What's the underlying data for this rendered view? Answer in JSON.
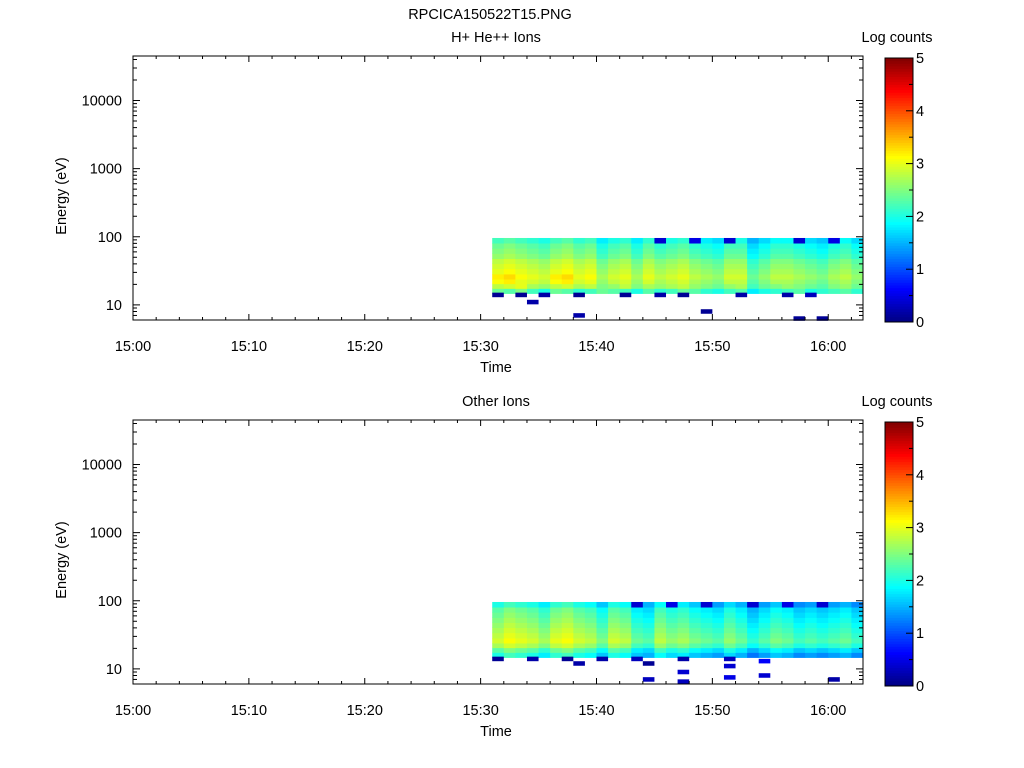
{
  "figure_title": "RPCICA150522T15.PNG",
  "chart_data": [
    {
      "type": "heatmap",
      "title": "H+ He++ Ions",
      "xlabel": "Time",
      "ylabel": "Energy (eV)",
      "y_scale": "log",
      "ylim": [
        6,
        45000
      ],
      "x_ticks": [
        "15:00",
        "15:10",
        "15:20",
        "15:30",
        "15:40",
        "15:50",
        "16:00"
      ],
      "y_ticks": [
        "10",
        "100",
        "1000",
        "10000"
      ],
      "colorbar": {
        "label": "Log counts",
        "range": [
          0,
          5
        ],
        "ticks": [
          "0",
          "1",
          "2",
          "3",
          "4",
          "5"
        ],
        "colormap": "jet"
      },
      "time_range": [
        "15:00",
        "16:03"
      ],
      "data_time_range": [
        "15:31",
        "16:03"
      ],
      "energy_bins_eV": [
        16,
        19,
        22,
        26,
        31,
        37,
        44,
        52,
        62,
        74,
        88
      ],
      "intensity_rows_low_to_high": [
        [
          2.4,
          2.3,
          2.5,
          2.2,
          2.0,
          2.4,
          2.3,
          2.1,
          2.2,
          2.4,
          2.3,
          2.2,
          2.0,
          2.3,
          2.1,
          2.2,
          2.4,
          2.3,
          2.1,
          2.0,
          2.2,
          2.3,
          1.8,
          2.0,
          2.1,
          2.2,
          2.3,
          2.0,
          2.1,
          2.2,
          2.3,
          2.1
        ],
        [
          2.8,
          2.9,
          3.0,
          2.7,
          2.6,
          2.8,
          2.9,
          2.7,
          2.8,
          2.5,
          2.6,
          2.8,
          2.5,
          2.7,
          2.6,
          2.7,
          2.8,
          2.6,
          2.5,
          2.4,
          2.6,
          2.7,
          2.2,
          2.4,
          2.5,
          2.6,
          2.5,
          2.4,
          2.3,
          2.5,
          2.6,
          2.4
        ],
        [
          3.1,
          3.2,
          3.0,
          2.9,
          2.8,
          3.1,
          3.2,
          2.9,
          3.0,
          2.6,
          2.8,
          2.9,
          2.6,
          2.9,
          2.7,
          2.8,
          2.9,
          2.7,
          2.6,
          2.5,
          2.8,
          2.8,
          2.3,
          2.5,
          2.7,
          2.7,
          2.6,
          2.5,
          2.4,
          2.6,
          2.7,
          2.5
        ],
        [
          3.2,
          3.3,
          3.1,
          3.0,
          2.9,
          3.2,
          3.3,
          3.0,
          3.1,
          2.7,
          2.9,
          3.0,
          2.7,
          3.0,
          2.8,
          2.9,
          3.0,
          2.8,
          2.7,
          2.6,
          2.9,
          2.9,
          2.4,
          2.6,
          2.8,
          2.8,
          2.7,
          2.6,
          2.5,
          2.7,
          2.8,
          2.6
        ],
        [
          3.0,
          3.1,
          3.0,
          2.9,
          2.8,
          3.0,
          3.1,
          2.9,
          3.0,
          2.6,
          2.8,
          2.9,
          2.6,
          2.9,
          2.7,
          2.8,
          2.9,
          2.7,
          2.6,
          2.5,
          2.8,
          2.8,
          2.3,
          2.5,
          2.7,
          2.7,
          2.6,
          2.5,
          2.4,
          2.6,
          2.7,
          2.5
        ],
        [
          2.9,
          3.0,
          2.9,
          2.8,
          2.7,
          2.9,
          3.0,
          2.8,
          2.9,
          2.5,
          2.7,
          2.8,
          2.5,
          2.8,
          2.6,
          2.7,
          2.8,
          2.6,
          2.5,
          2.4,
          2.7,
          2.7,
          2.2,
          2.4,
          2.6,
          2.6,
          2.5,
          2.4,
          2.3,
          2.5,
          2.6,
          2.4
        ],
        [
          2.8,
          2.9,
          2.8,
          2.7,
          2.6,
          2.8,
          2.9,
          2.7,
          2.8,
          2.4,
          2.6,
          2.7,
          2.4,
          2.7,
          2.5,
          2.6,
          2.7,
          2.5,
          2.4,
          2.3,
          2.6,
          2.6,
          2.1,
          2.3,
          2.5,
          2.5,
          2.4,
          2.3,
          2.2,
          2.4,
          2.5,
          2.3
        ],
        [
          2.6,
          2.7,
          2.6,
          2.5,
          2.4,
          2.6,
          2.7,
          2.5,
          2.6,
          2.2,
          2.4,
          2.5,
          2.2,
          2.5,
          2.3,
          2.4,
          2.5,
          2.3,
          2.2,
          2.1,
          2.4,
          2.4,
          1.9,
          2.1,
          2.3,
          2.3,
          2.2,
          2.1,
          2.0,
          2.2,
          2.3,
          2.1
        ],
        [
          2.5,
          2.6,
          2.5,
          2.4,
          2.3,
          2.5,
          2.6,
          2.4,
          2.5,
          2.1,
          2.3,
          2.4,
          2.1,
          2.4,
          2.2,
          2.3,
          2.4,
          2.2,
          2.1,
          2.0,
          2.3,
          2.3,
          1.8,
          2.0,
          2.2,
          2.2,
          2.1,
          2.0,
          1.9,
          2.1,
          2.2,
          2.0
        ],
        [
          2.4,
          2.5,
          2.4,
          2.3,
          2.2,
          2.4,
          2.5,
          2.3,
          2.4,
          2.0,
          2.2,
          2.3,
          2.0,
          2.3,
          2.1,
          2.2,
          2.3,
          2.1,
          2.0,
          1.9,
          2.2,
          2.2,
          1.7,
          1.9,
          2.1,
          2.1,
          2.0,
          1.9,
          1.8,
          2.0,
          2.1,
          1.9
        ],
        [
          2.2,
          2.3,
          2.2,
          2.1,
          2.0,
          2.2,
          2.3,
          2.1,
          2.2,
          1.8,
          2.0,
          2.1,
          1.8,
          2.1,
          0.4,
          2.0,
          2.1,
          0.5,
          1.8,
          1.7,
          0.4,
          2.0,
          1.5,
          1.7,
          1.9,
          1.9,
          0.4,
          1.7,
          1.6,
          0.5,
          1.9,
          1.7
        ]
      ],
      "low_energy_points": [
        {
          "t": "15:31",
          "e": 14,
          "v": 0.1
        },
        {
          "t": "15:33",
          "e": 14,
          "v": 0.1
        },
        {
          "t": "15:35",
          "e": 14,
          "v": 0.2
        },
        {
          "t": "15:34",
          "e": 11,
          "v": 0.2
        },
        {
          "t": "15:38",
          "e": 14,
          "v": 0.1
        },
        {
          "t": "15:38",
          "e": 7,
          "v": 0.2
        },
        {
          "t": "15:42",
          "e": 14,
          "v": 0.1
        },
        {
          "t": "15:45",
          "e": 14,
          "v": 0.2
        },
        {
          "t": "15:47",
          "e": 14,
          "v": 0.1
        },
        {
          "t": "15:49",
          "e": 8,
          "v": 0.1
        },
        {
          "t": "15:52",
          "e": 14,
          "v": 0.2
        },
        {
          "t": "15:56",
          "e": 14,
          "v": 0.2
        },
        {
          "t": "15:57",
          "e": 6.3,
          "v": 0.1
        },
        {
          "t": "15:58",
          "e": 14,
          "v": 0.3
        },
        {
          "t": "15:59",
          "e": 6.3,
          "v": 0.1
        }
      ]
    },
    {
      "type": "heatmap",
      "title": "Other Ions",
      "xlabel": "Time",
      "ylabel": "Energy (eV)",
      "y_scale": "log",
      "ylim": [
        6,
        45000
      ],
      "x_ticks": [
        "15:00",
        "15:10",
        "15:20",
        "15:30",
        "15:40",
        "15:50",
        "16:00"
      ],
      "y_ticks": [
        "10",
        "100",
        "1000",
        "10000"
      ],
      "colorbar": {
        "label": "Log counts",
        "range": [
          0,
          5
        ],
        "ticks": [
          "0",
          "1",
          "2",
          "3",
          "4",
          "5"
        ],
        "colormap": "jet"
      },
      "time_range": [
        "15:00",
        "16:03"
      ],
      "data_time_range": [
        "15:31",
        "16:03"
      ],
      "energy_bins_eV": [
        16,
        19,
        22,
        26,
        31,
        37,
        44,
        52,
        62,
        74,
        88
      ],
      "intensity_rows_low_to_high": [
        [
          2.0,
          2.2,
          2.1,
          2.0,
          1.8,
          2.1,
          2.2,
          2.0,
          1.9,
          1.6,
          2.0,
          1.9,
          1.6,
          1.5,
          1.9,
          1.7,
          1.8,
          1.6,
          1.5,
          1.4,
          1.7,
          1.5,
          1.2,
          1.4,
          1.6,
          1.5,
          1.3,
          1.4,
          1.3,
          1.4,
          1.5,
          1.3
        ],
        [
          2.3,
          2.5,
          2.4,
          2.3,
          2.1,
          2.4,
          2.5,
          2.3,
          2.2,
          1.9,
          2.3,
          2.2,
          1.8,
          1.7,
          2.2,
          2.0,
          2.1,
          1.9,
          1.8,
          1.7,
          2.0,
          1.8,
          1.5,
          1.7,
          1.9,
          1.8,
          1.6,
          1.7,
          1.6,
          1.7,
          1.8,
          1.6
        ],
        [
          2.7,
          2.9,
          2.8,
          2.7,
          2.5,
          2.8,
          2.9,
          2.7,
          2.6,
          2.3,
          2.7,
          2.6,
          2.2,
          2.1,
          2.6,
          2.4,
          2.5,
          2.3,
          2.2,
          2.1,
          2.4,
          2.2,
          1.9,
          2.1,
          2.3,
          2.2,
          2.0,
          2.1,
          2.0,
          2.1,
          2.2,
          2.0
        ],
        [
          2.9,
          3.1,
          3.0,
          2.9,
          2.7,
          3.0,
          3.1,
          2.9,
          2.8,
          2.5,
          2.9,
          2.8,
          2.4,
          2.3,
          2.8,
          2.6,
          2.7,
          2.5,
          2.4,
          2.3,
          2.6,
          2.4,
          2.1,
          2.3,
          2.5,
          2.4,
          2.2,
          2.3,
          2.2,
          2.3,
          2.4,
          2.2
        ],
        [
          2.8,
          3.0,
          2.9,
          2.8,
          2.6,
          2.9,
          3.0,
          2.8,
          2.7,
          2.4,
          2.8,
          2.7,
          2.3,
          2.2,
          2.7,
          2.5,
          2.6,
          2.4,
          2.3,
          2.2,
          2.5,
          2.3,
          2.0,
          2.2,
          2.4,
          2.3,
          2.1,
          2.2,
          2.1,
          2.2,
          2.3,
          2.1
        ],
        [
          2.7,
          2.9,
          2.8,
          2.7,
          2.5,
          2.8,
          2.9,
          2.7,
          2.6,
          2.3,
          2.7,
          2.6,
          2.2,
          2.1,
          2.6,
          2.4,
          2.5,
          2.3,
          2.2,
          2.1,
          2.4,
          2.2,
          1.9,
          2.1,
          2.3,
          2.2,
          2.0,
          2.1,
          2.0,
          2.1,
          2.2,
          2.0
        ],
        [
          2.6,
          2.8,
          2.7,
          2.6,
          2.4,
          2.7,
          2.8,
          2.6,
          2.5,
          2.2,
          2.6,
          2.5,
          2.1,
          2.0,
          2.5,
          2.3,
          2.4,
          2.2,
          2.1,
          2.0,
          2.3,
          2.1,
          1.8,
          2.0,
          2.2,
          2.1,
          1.9,
          2.0,
          1.9,
          2.0,
          2.1,
          1.9
        ],
        [
          2.5,
          2.7,
          2.6,
          2.5,
          2.3,
          2.6,
          2.7,
          2.5,
          2.4,
          2.1,
          2.5,
          2.4,
          2.0,
          1.9,
          2.4,
          2.2,
          2.3,
          2.1,
          2.0,
          1.9,
          2.2,
          2.0,
          1.7,
          1.9,
          2.1,
          2.0,
          1.8,
          1.9,
          1.8,
          1.9,
          2.0,
          1.8
        ],
        [
          2.4,
          2.6,
          2.5,
          2.4,
          2.2,
          2.5,
          2.6,
          2.4,
          2.3,
          2.0,
          2.4,
          2.3,
          1.9,
          1.8,
          2.3,
          2.1,
          2.2,
          2.0,
          1.9,
          1.8,
          2.1,
          1.9,
          1.6,
          1.8,
          2.0,
          1.9,
          1.7,
          1.8,
          1.7,
          1.8,
          1.9,
          1.7
        ],
        [
          2.3,
          2.5,
          2.4,
          2.3,
          2.1,
          2.4,
          2.5,
          2.3,
          2.2,
          1.9,
          2.3,
          2.2,
          1.8,
          1.7,
          2.2,
          2.0,
          2.1,
          1.9,
          1.8,
          1.7,
          2.0,
          1.8,
          1.5,
          1.7,
          1.9,
          1.8,
          1.6,
          1.7,
          1.6,
          1.7,
          1.8,
          1.6
        ],
        [
          2.0,
          2.2,
          2.1,
          2.0,
          1.8,
          2.1,
          2.2,
          2.0,
          1.9,
          1.6,
          2.0,
          1.9,
          0.4,
          1.5,
          1.9,
          0.5,
          1.8,
          1.6,
          0.4,
          1.4,
          1.7,
          1.5,
          0.4,
          1.4,
          1.6,
          0.5,
          1.3,
          1.4,
          0.4,
          1.4,
          1.5,
          1.3
        ]
      ],
      "low_energy_points": [
        {
          "t": "15:31",
          "e": 14,
          "v": 0.1
        },
        {
          "t": "15:34",
          "e": 14,
          "v": 0.2
        },
        {
          "t": "15:37",
          "e": 14,
          "v": 0.1
        },
        {
          "t": "15:38",
          "e": 12,
          "v": 0.2
        },
        {
          "t": "15:40",
          "e": 14,
          "v": 0.2
        },
        {
          "t": "15:43",
          "e": 14,
          "v": 0.3
        },
        {
          "t": "15:44",
          "e": 12,
          "v": 0.1
        },
        {
          "t": "15:44",
          "e": 7,
          "v": 0.3
        },
        {
          "t": "15:47",
          "e": 14,
          "v": 0.2
        },
        {
          "t": "15:47",
          "e": 9,
          "v": 0.4
        },
        {
          "t": "15:47",
          "e": 6.5,
          "v": 0.3
        },
        {
          "t": "15:51",
          "e": 14,
          "v": 0.3
        },
        {
          "t": "15:51",
          "e": 11,
          "v": 0.4
        },
        {
          "t": "15:51",
          "e": 7.5,
          "v": 0.5
        },
        {
          "t": "15:54",
          "e": 13,
          "v": 0.6
        },
        {
          "t": "15:54",
          "e": 8,
          "v": 0.4
        },
        {
          "t": "16:00",
          "e": 7,
          "v": 0.2
        }
      ]
    }
  ]
}
